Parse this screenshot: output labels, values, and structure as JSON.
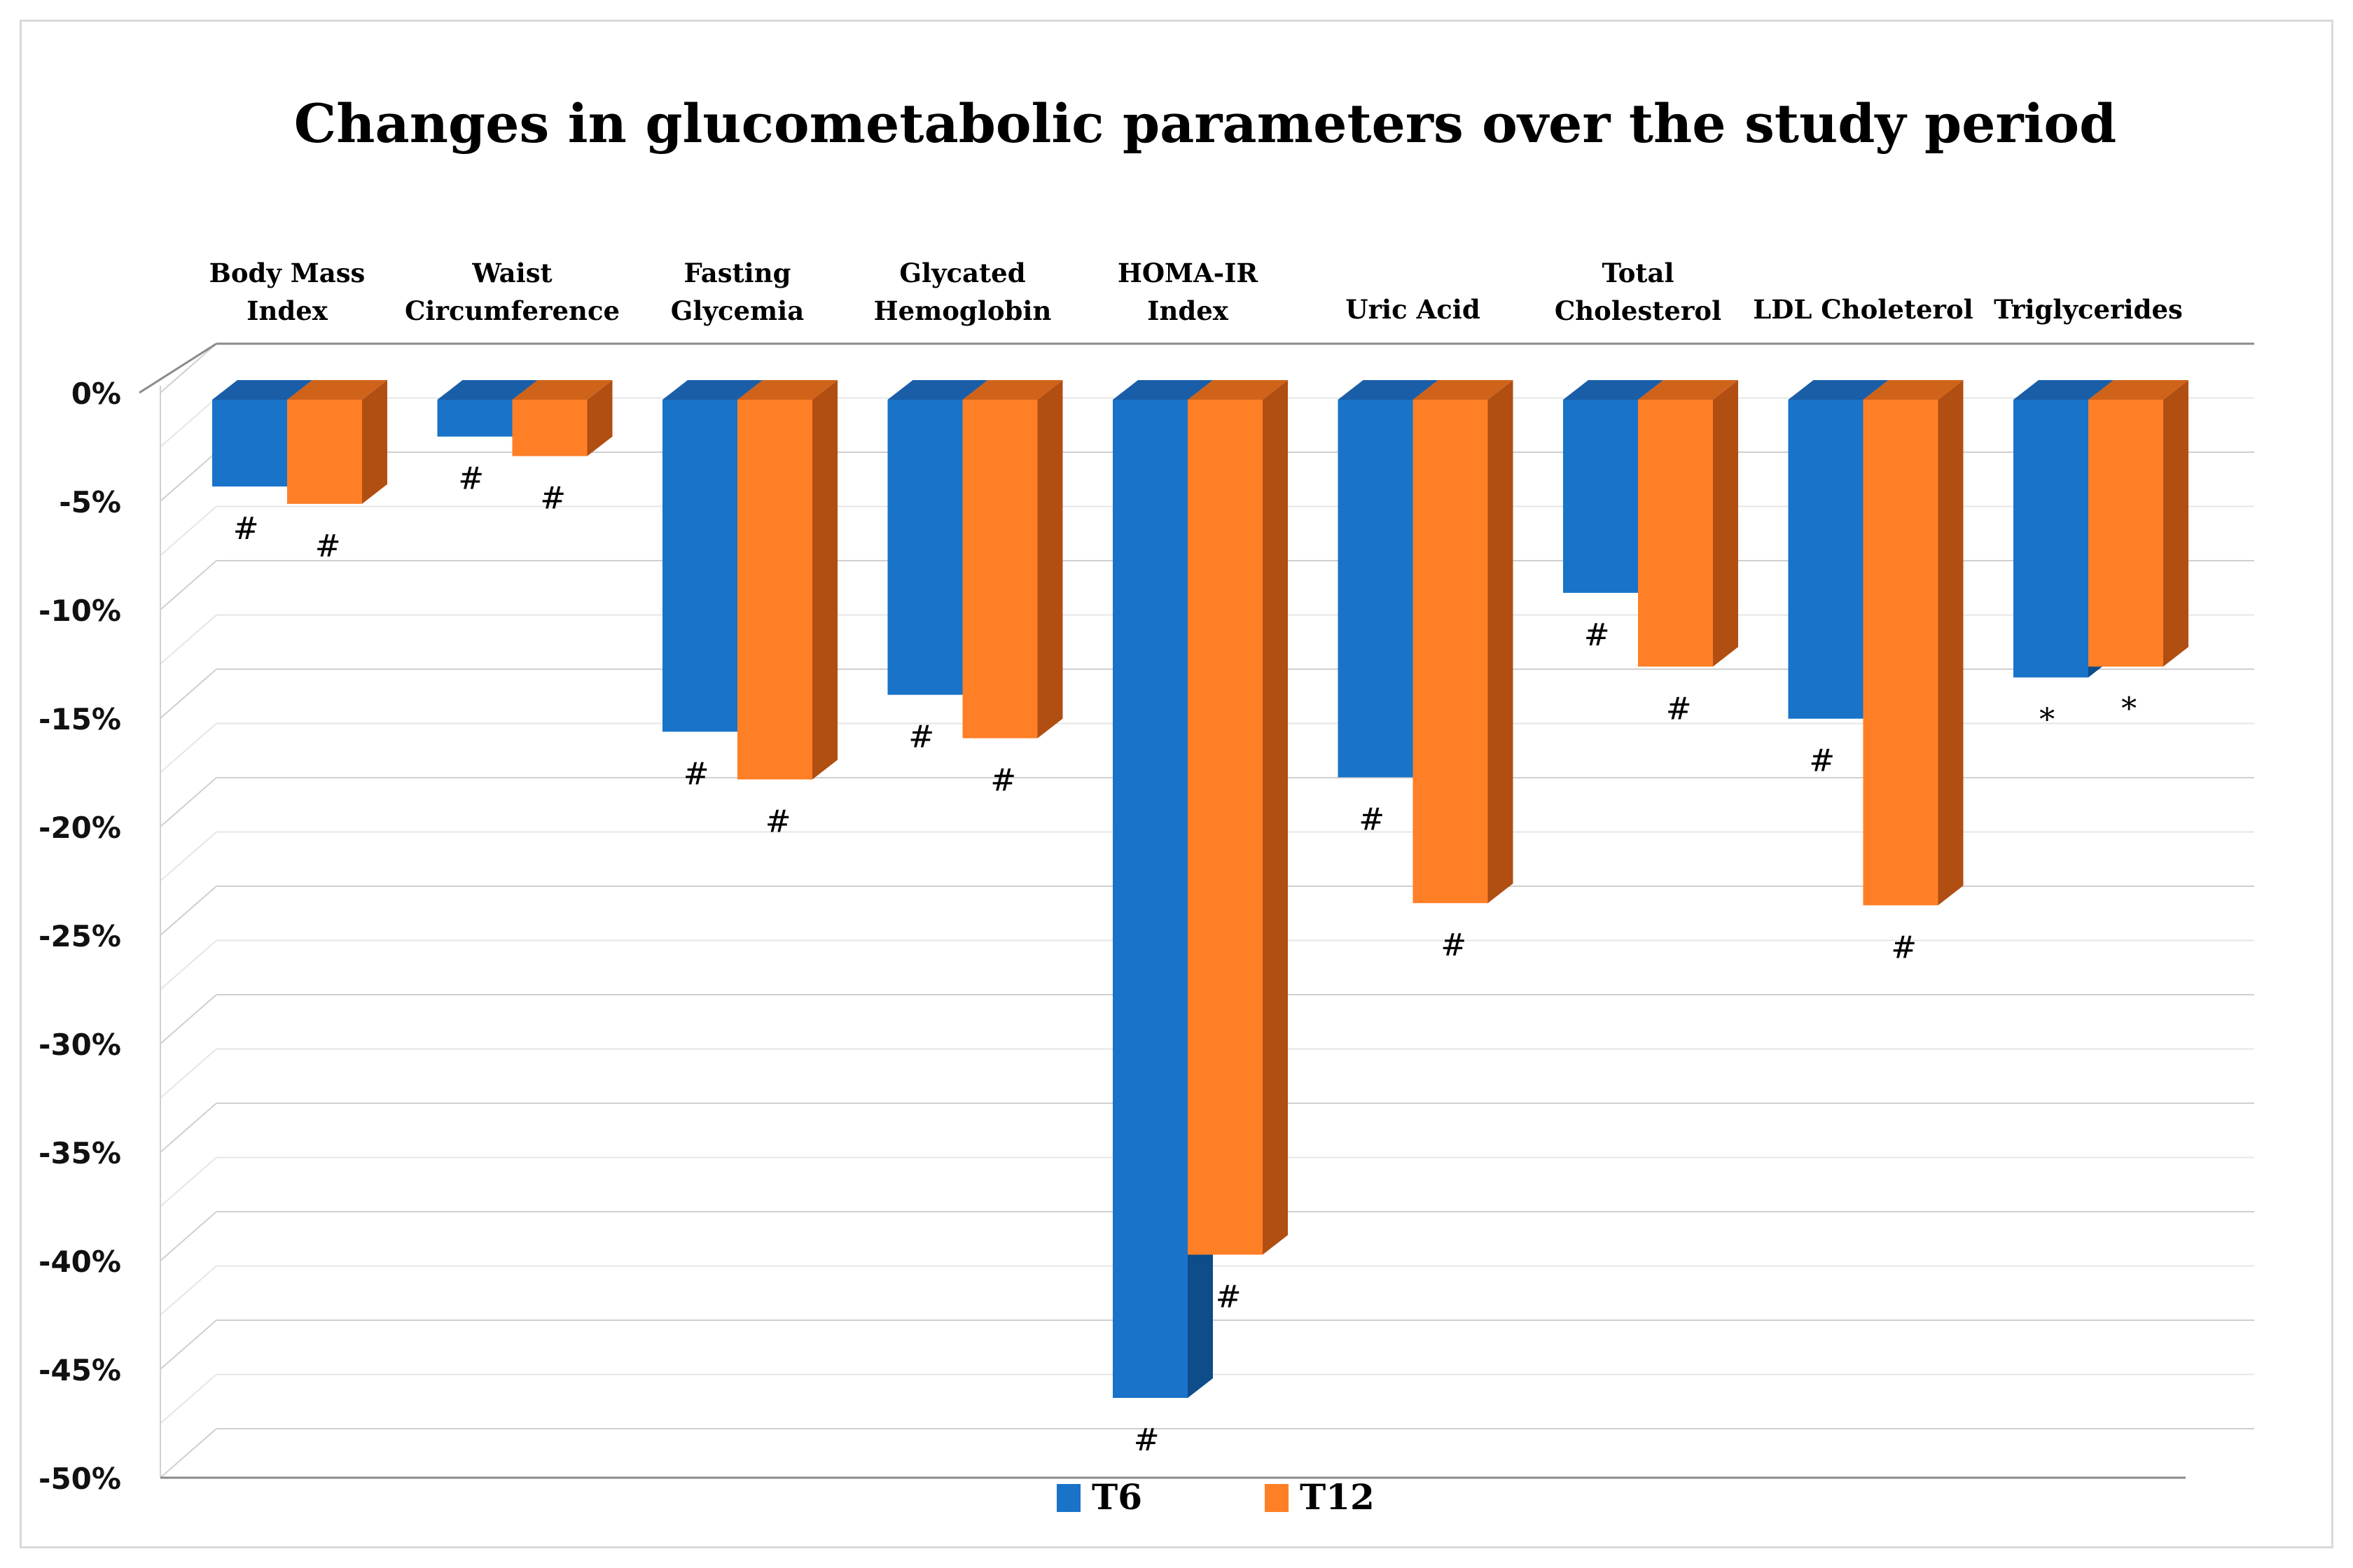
{
  "chart_data": {
    "type": "bar",
    "title": "Changes in glucometabolic parameters over the study period",
    "categories": [
      [
        "Body Mass",
        "Index"
      ],
      [
        "Waist",
        "Circumference"
      ],
      [
        "Fasting",
        "Glycemia"
      ],
      [
        "Glycated",
        "Hemoglobin"
      ],
      [
        "HOMA-IR",
        "Index"
      ],
      [
        "Uric Acid"
      ],
      [
        "Total",
        "Cholesterol"
      ],
      [
        "LDL Choleterol"
      ],
      [
        "Triglycerides"
      ]
    ],
    "series": [
      {
        "name": "T6",
        "color": "#1873C9",
        "side_color": "#0E4C8A",
        "top_color": "#1A5EA8",
        "values": [
          -4,
          -1.7,
          -15.3,
          -13.6,
          -46,
          -17.4,
          -8.9,
          -14.7,
          -12.8
        ],
        "annotations": [
          "#",
          "#",
          "#",
          "#",
          "#",
          "#",
          "#",
          "#",
          "*"
        ]
      },
      {
        "name": "T12",
        "color": "#FF7F27",
        "side_color": "#B14E12",
        "top_color": "#D0631A",
        "values": [
          -4.8,
          -2.6,
          -17.5,
          -15.6,
          -39.4,
          -23.2,
          -12.3,
          -23.3,
          -12.3
        ],
        "annotations": [
          "#",
          "#",
          "#",
          "#",
          "#",
          "#",
          "#",
          "#",
          "*"
        ]
      }
    ],
    "ylim": [
      -50,
      0
    ],
    "y_tick_step": 5,
    "y_tick_labels": [
      "0%",
      "-5%",
      "-10%",
      "-15%",
      "-20%",
      "-25%",
      "-30%",
      "-35%",
      "-40%",
      "-45%",
      "-50%"
    ],
    "xlabel": "",
    "ylabel": "",
    "legend_position": "bottom-center",
    "grid": true
  }
}
